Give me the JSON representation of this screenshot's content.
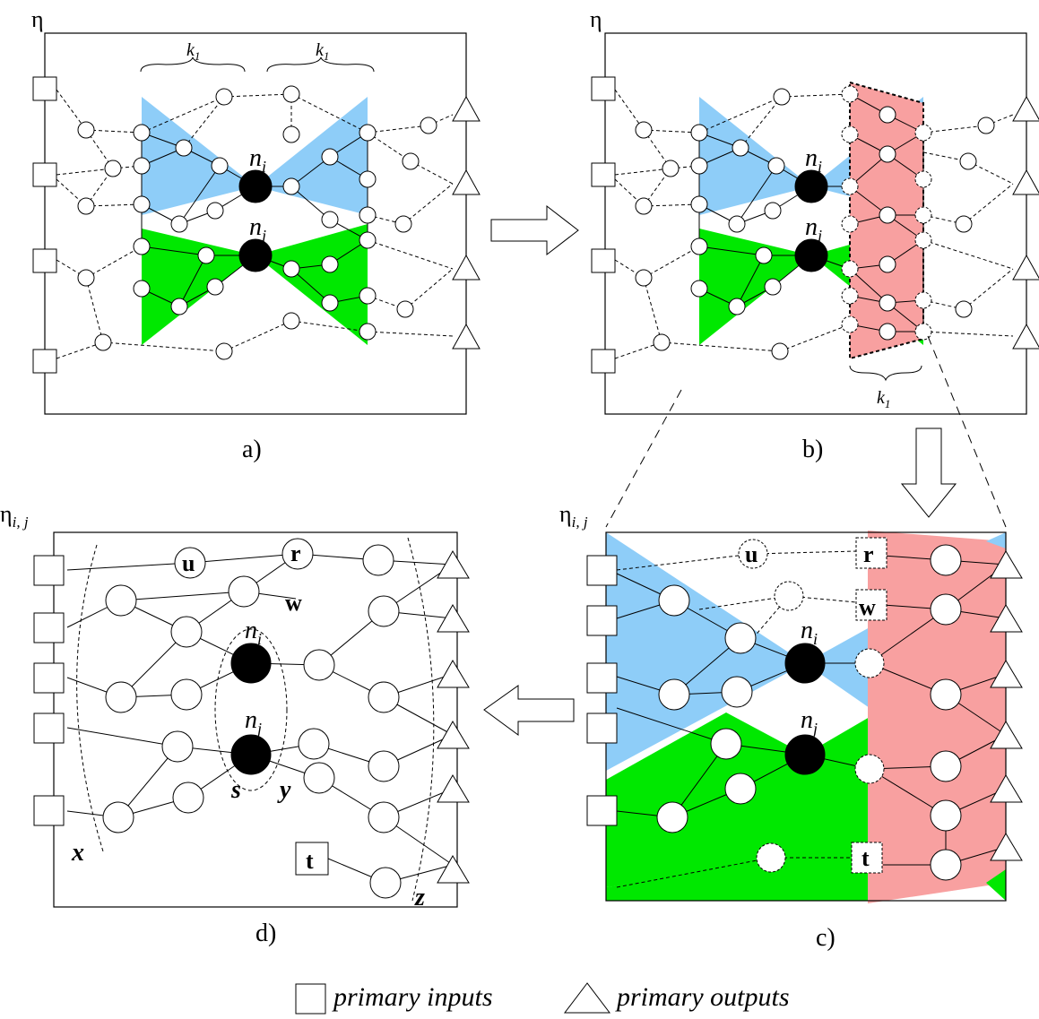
{
  "panels": {
    "a": {
      "label": "a)",
      "eta": "η",
      "k_left": "k",
      "k_left_sub": "1",
      "k_right": "k",
      "k_right_sub": "1",
      "ni": "n",
      "ni_sub": "i",
      "nj": "n",
      "nj_sub": "j"
    },
    "b": {
      "label": "b)",
      "eta": "η",
      "k": "k",
      "k_sub": "1",
      "ni": "n",
      "ni_sub": "i",
      "nj": "n",
      "nj_sub": "j"
    },
    "c": {
      "label": "c)",
      "eta": "η",
      "eta_sub": "i, j",
      "ni": "n",
      "ni_sub": "i",
      "nj": "n",
      "nj_sub": "j",
      "u": "u",
      "r": "r",
      "w": "w",
      "t": "t"
    },
    "d": {
      "label": "d)",
      "eta": "η",
      "eta_sub": "i, j",
      "ni": "n",
      "ni_sub": "i",
      "nj": "n",
      "nj_sub": "j",
      "u": "u",
      "r": "r",
      "w": "w",
      "t": "t",
      "s": "s",
      "y": "y",
      "x": "x",
      "z": "z"
    }
  },
  "legend": {
    "inputs": "primary inputs",
    "outputs": "primary outputs"
  },
  "colors": {
    "blue_cone": "#8ecdf8",
    "green_cone": "#00e800",
    "red_window": "#f8a0a0"
  }
}
